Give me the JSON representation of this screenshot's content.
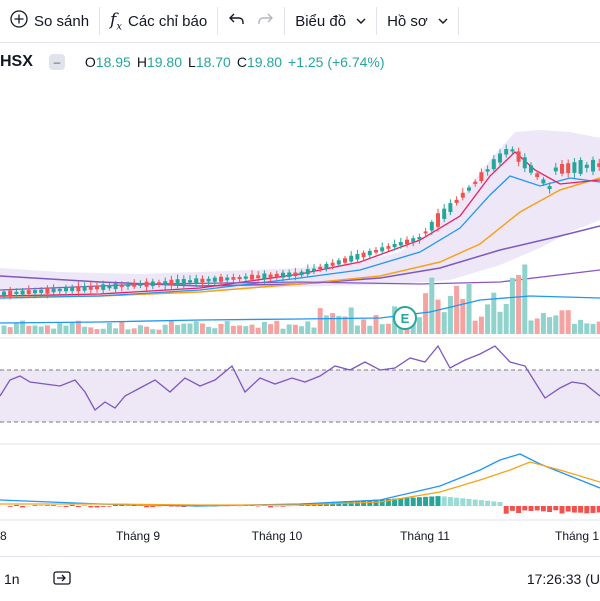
{
  "toolbar": {
    "compare_label": "So sánh",
    "indicators_label": "Các chỉ báo",
    "chart_type_label": "Biểu đồ",
    "profile_label": "Hồ sơ"
  },
  "legend": {
    "symbol": "HSX",
    "open_key": "O",
    "open_val": "18.95",
    "high_key": "H",
    "high_val": "19.80",
    "low_key": "L",
    "low_val": "18.70",
    "close_key": "C",
    "close_val": "19.80",
    "change": "+1.25 (+6.74%)"
  },
  "xaxis": {
    "labels": [
      "8",
      "Tháng 9",
      "Tháng 10",
      "Tháng 11",
      "Tháng 1"
    ]
  },
  "earnings_marker": "E",
  "footer": {
    "interval": "1n",
    "time": "17:26:33 (U"
  },
  "colors": {
    "up": "#26a69a",
    "down": "#ef5350",
    "ma_purple": "#7e57c2",
    "ma_orange": "#f7a21b",
    "ma_blue": "#2196f3",
    "ma_pink": "#e91e63"
  }
}
